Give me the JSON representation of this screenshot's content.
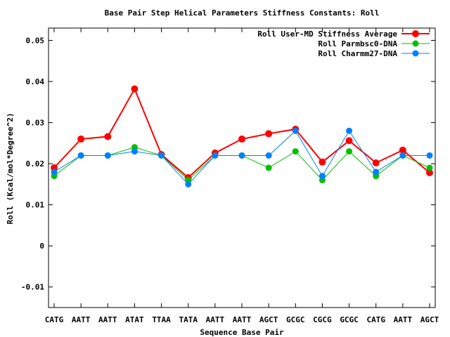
{
  "chart_data": {
    "type": "line",
    "title": "Base Pair Step Helical Parameters Stiffness Constants: Roll",
    "xlabel": "Sequence Base Pair",
    "ylabel": "Roll (Kcal/mol*Degree^2)",
    "ylim": [
      -0.015,
      0.053
    ],
    "yticks": [
      0.05,
      0.04,
      0.03,
      0.02,
      0.01,
      0,
      -0.01
    ],
    "ytick_labels": [
      "0.05",
      "0.04",
      "0.03",
      "0.02",
      "0.01",
      "0",
      "-0.01"
    ],
    "categories": [
      "CATG",
      "AATT",
      "AATT",
      "ATAT",
      "TTAA",
      "TATA",
      "AATT",
      "AATT",
      "AGCT",
      "GCGC",
      "CGCG",
      "GCGC",
      "CATG",
      "AATT",
      "AGCT"
    ],
    "grid": false,
    "legend_position": "top-right",
    "series": [
      {
        "name": "Roll User-MD Stiffness Average",
        "color": "#ff0000",
        "values": [
          0.019,
          0.026,
          0.0266,
          0.0382,
          0.0222,
          0.0166,
          0.0226,
          0.026,
          0.0273,
          0.0284,
          0.0204,
          0.0256,
          0.0202,
          0.0233,
          0.0178
        ]
      },
      {
        "name": "Roll Parmbsc0-DNA",
        "color": "#00c000",
        "values": [
          0.017,
          0.022,
          0.022,
          0.024,
          0.022,
          0.016,
          0.022,
          0.022,
          0.019,
          0.023,
          0.016,
          0.023,
          0.017,
          0.022,
          0.019
        ]
      },
      {
        "name": "Roll Charmm27-DNA",
        "color": "#0080ff",
        "values": [
          0.018,
          0.022,
          0.022,
          0.023,
          0.022,
          0.015,
          0.022,
          0.022,
          0.022,
          0.028,
          0.017,
          0.028,
          0.018,
          0.022,
          0.022
        ]
      }
    ]
  }
}
